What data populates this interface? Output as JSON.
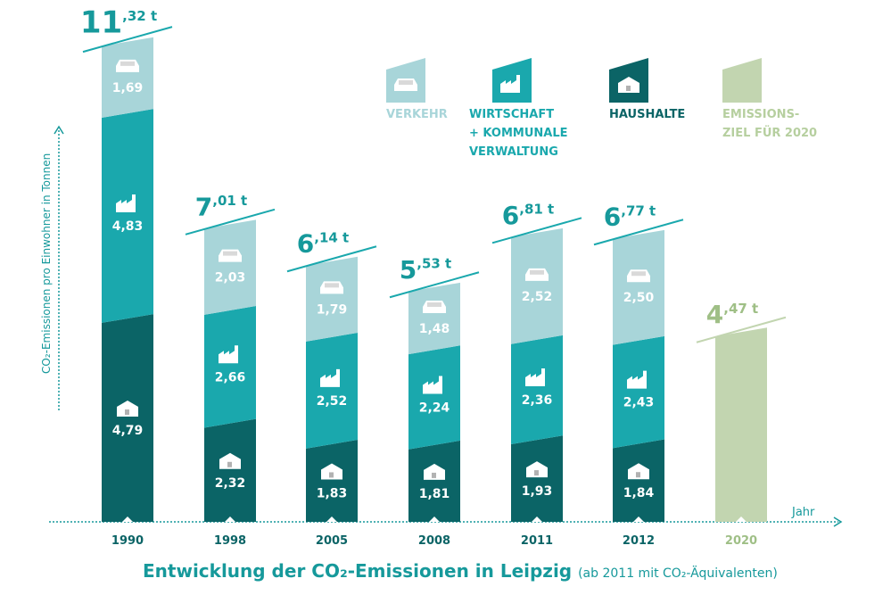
{
  "chart_data": {
    "type": "bar",
    "stacked": true,
    "title": "Entwicklung der CO₂-Emissionen in Leipzig",
    "subtitle": "(ab 2011 mit CO₂-Äquivalenten)",
    "xlabel": "Jahr",
    "ylabel": "CO₂-Emissionen pro Einwohner in Tonnen",
    "unit": "t",
    "categories": [
      "1990",
      "1998",
      "2005",
      "2008",
      "2011",
      "2012",
      "2020"
    ],
    "totals": [
      "11,32",
      "7,01",
      "6,14",
      "5,53",
      "6,81",
      "6,77",
      "4,47"
    ],
    "series": [
      {
        "name": "HAUSHALTE",
        "icon": "house-icon",
        "color": "#0b6466",
        "values": [
          4.79,
          2.32,
          1.83,
          1.81,
          1.93,
          1.84,
          null
        ]
      },
      {
        "name": "WIRTSCHAFT + KOMMUNALE VERWALTUNG",
        "icon": "factory-icon",
        "color": "#1aa8ad",
        "values": [
          4.83,
          2.66,
          2.52,
          2.24,
          2.36,
          2.43,
          null
        ]
      },
      {
        "name": "VERKEHR",
        "icon": "car-icon",
        "color": "#a8d5d9",
        "values": [
          1.69,
          2.03,
          1.79,
          1.48,
          2.52,
          2.5,
          null
        ]
      },
      {
        "name": "EMISSIONS-ZIEL FÜR 2020",
        "color": "#c2d5b0",
        "values": [
          null,
          null,
          null,
          null,
          null,
          null,
          4.47
        ]
      }
    ],
    "legend": {
      "placement": "top-right",
      "items": [
        {
          "lines": [
            "VERKEHR"
          ],
          "color": "#a8d5d9",
          "icon": "car-icon"
        },
        {
          "lines": [
            "WIRTSCHAFT",
            "+ KOMMUNALE",
            "VERWALTUNG"
          ],
          "color": "#1aa8ad",
          "icon": "factory-icon"
        },
        {
          "lines": [
            "HAUSHALTE"
          ],
          "color": "#0b6466",
          "icon": "house-icon"
        },
        {
          "lines": [
            "EMISSIONS-",
            "ZIEL FÜR 2020"
          ],
          "color": "#c2d5b0",
          "icon": ""
        }
      ]
    },
    "ylim": [
      0,
      11.5
    ],
    "grid": false
  }
}
